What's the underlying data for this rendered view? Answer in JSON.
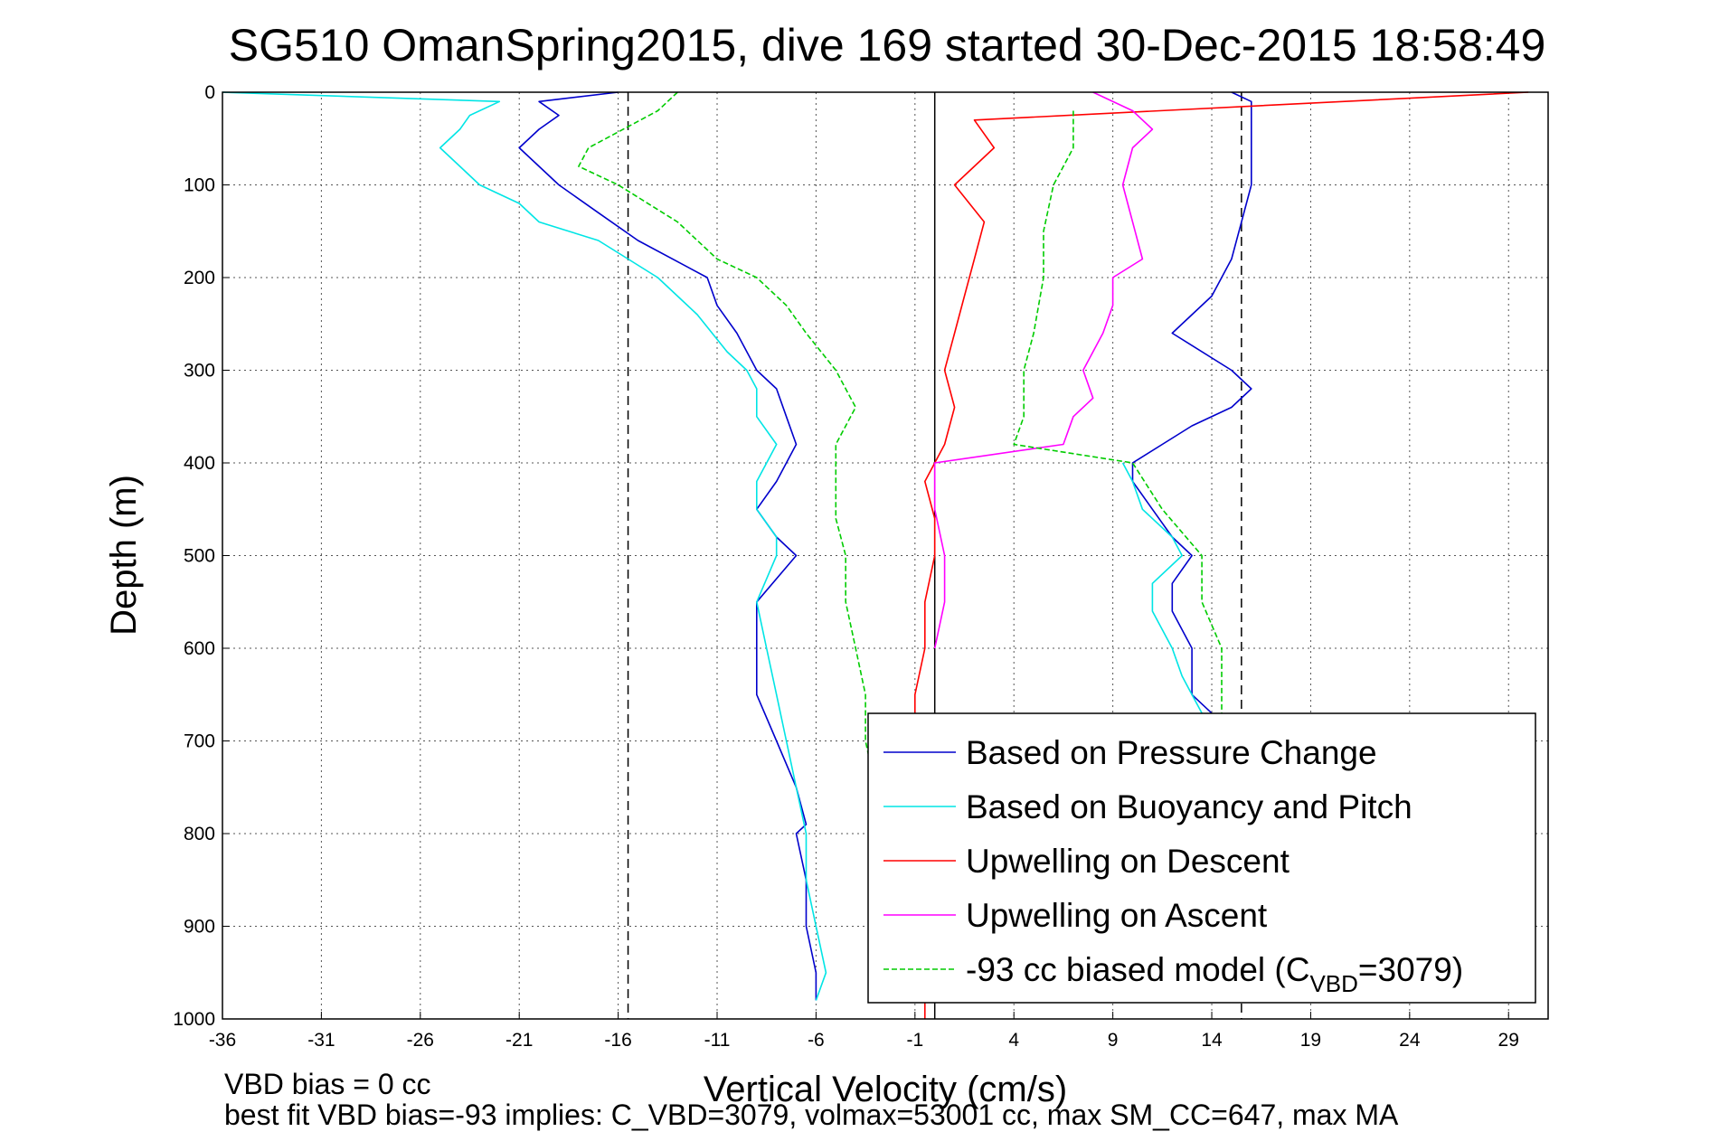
{
  "chart_data": {
    "type": "line",
    "title": "SG510 OmanSpring2015, dive 169 started 30-Dec-2015 18:58:49",
    "xlabel": "Vertical Velocity (cm/s)",
    "ylabel": "Depth (m)",
    "xlim": [
      -36,
      31
    ],
    "ylim": [
      0,
      1000
    ],
    "y_reversed": true,
    "xticks": [
      "-36",
      "-31",
      "-26",
      "-21",
      "-16",
      "-11",
      "-6",
      "-1",
      "4",
      "9",
      "14",
      "19",
      "24",
      "29"
    ],
    "yticks": [
      "0",
      "100",
      "200",
      "300",
      "400",
      "500",
      "600",
      "700",
      "800",
      "900",
      "1000"
    ],
    "grid": true,
    "legend_position": "bottom-right",
    "reference_lines": [
      {
        "orientation": "vertical",
        "x": -15.5,
        "style": "dashed"
      },
      {
        "orientation": "vertical",
        "x": 15.5,
        "style": "dashed"
      },
      {
        "orientation": "vertical",
        "x": 0,
        "style": "solid"
      }
    ],
    "series": [
      {
        "name": "Based on Pressure Change",
        "color": "#0000cc",
        "style": "solid",
        "segments": [
          {
            "depth": [
              0,
              10,
              25,
              40,
              60,
              80,
              100,
              130,
              160,
              200,
              230,
              260,
              300,
              320,
              350,
              380,
              420,
              450,
              480,
              500,
              550,
              600,
              650,
              700,
              750,
              790,
              800,
              850,
              900,
              950,
              980
            ],
            "velocity": [
              -16,
              -20,
              -19,
              -20,
              -21,
              -20,
              -19,
              -17,
              -15,
              -11.5,
              -11,
              -10,
              -9,
              -8,
              -7.5,
              -7,
              -8,
              -9,
              -8,
              -7,
              -9,
              -9,
              -9,
              -8,
              -7,
              -6.5,
              -7,
              -6.5,
              -6.5,
              -6,
              -6
            ]
          },
          {
            "depth": [
              0,
              10,
              30,
              60,
              100,
              140,
              180,
              220,
              260,
              300,
              320,
              340,
              360,
              380,
              400,
              420,
              450,
              480,
              500,
              530,
              560,
              600,
              630,
              650,
              670
            ],
            "velocity": [
              15,
              16,
              16,
              16,
              16,
              15.5,
              15,
              14,
              12,
              15,
              16,
              15,
              13,
              11.5,
              10,
              10,
              11,
              12,
              13,
              12,
              12,
              13,
              13,
              13,
              14
            ]
          }
        ]
      },
      {
        "name": "Based on Buoyancy and Pitch",
        "color": "#00e5e5",
        "style": "solid",
        "segments": [
          {
            "depth": [
              0,
              10,
              25,
              40,
              60,
              80,
              100,
              120,
              140,
              160,
              180,
              200,
              240,
              280,
              300,
              320,
              350,
              380,
              420,
              450,
              480,
              500,
              550,
              600,
              650,
              700,
              750,
              800,
              850,
              900,
              950,
              980
            ],
            "velocity": [
              -36,
              -22,
              -23.5,
              -24,
              -25,
              -24,
              -23,
              -21,
              -20,
              -17,
              -15.5,
              -14,
              -12,
              -10.5,
              -9.5,
              -9,
              -9,
              -8,
              -9,
              -9,
              -8,
              -8,
              -9,
              -8.5,
              -8,
              -7.5,
              -7,
              -6.5,
              -6.5,
              -6,
              -5.5,
              -6
            ]
          },
          {
            "depth": [
              400,
              420,
              450,
              480,
              500,
              530,
              560,
              600,
              630,
              650,
              670
            ],
            "velocity": [
              9.5,
              10,
              10.5,
              12,
              12.5,
              11,
              11,
              12,
              12.5,
              13,
              13.5
            ]
          }
        ]
      },
      {
        "name": "Upwelling on Descent",
        "color": "#ff0000",
        "style": "solid",
        "segments": [
          {
            "depth": [
              0,
              30,
              60,
              100,
              140,
              180,
              220,
              260,
              300,
              340,
              380,
              420,
              460,
              500,
              550,
              600,
              650,
              700,
              750,
              800,
              850,
              900,
              950,
              1000
            ],
            "velocity": [
              30,
              2,
              3,
              1,
              2.5,
              2,
              1.5,
              1,
              0.5,
              1,
              0.5,
              -0.5,
              0,
              0,
              -0.5,
              -0.5,
              -1,
              -1,
              -1,
              -0.5,
              -0.5,
              -0.5,
              -0.5,
              -0.5
            ]
          }
        ]
      },
      {
        "name": "Upwelling on Ascent",
        "color": "#ff00ff",
        "style": "solid",
        "segments": [
          {
            "depth": [
              0,
              20,
              40,
              60,
              100,
              140,
              180,
              200,
              230,
              260,
              300,
              330,
              350,
              380,
              400,
              450,
              500,
              550,
              600
            ],
            "velocity": [
              8,
              10,
              11,
              10,
              9.5,
              10,
              10.5,
              9,
              9,
              8.5,
              7.5,
              8,
              7,
              6.5,
              0,
              0,
              0.5,
              0.5,
              0
            ]
          }
        ]
      },
      {
        "name": "-93 cc biased model (C",
        "name_subscript": "VBD",
        "name_suffix": "=3079)",
        "color": "#00cc00",
        "style": "dashed",
        "segments": [
          {
            "depth": [
              0,
              20,
              60,
              80,
              100,
              140,
              180,
              200,
              230,
              260,
              300,
              320,
              340,
              380,
              420,
              460,
              500,
              550,
              600,
              650,
              700,
              750,
              800,
              850,
              900,
              950,
              980
            ],
            "velocity": [
              -13,
              -14,
              -17.5,
              -18,
              -16,
              -13,
              -11,
              -9,
              -7.5,
              -6.5,
              -5,
              -4.5,
              -4,
              -5,
              -5,
              -5,
              -4.5,
              -4.5,
              -4,
              -3.5,
              -3.5,
              -3,
              -3,
              -3,
              -3,
              -2.5,
              -2.5
            ]
          },
          {
            "depth": [
              20,
              60,
              100,
              150,
              200,
              260,
              300,
              350,
              380,
              400,
              450,
              500,
              550,
              600,
              650,
              700
            ],
            "velocity": [
              7,
              7,
              6,
              5.5,
              5.5,
              5,
              4.5,
              4.5,
              4,
              10,
              11.5,
              13.5,
              13.5,
              14.5,
              14.5,
              14.5
            ]
          }
        ]
      }
    ]
  },
  "annotations": {
    "vbd_bias": "VBD bias = 0 cc",
    "best_fit": "best fit VBD bias=-93 implies: C_VBD=3079, volmax=53001 cc, max SM_CC=647, max MA"
  }
}
